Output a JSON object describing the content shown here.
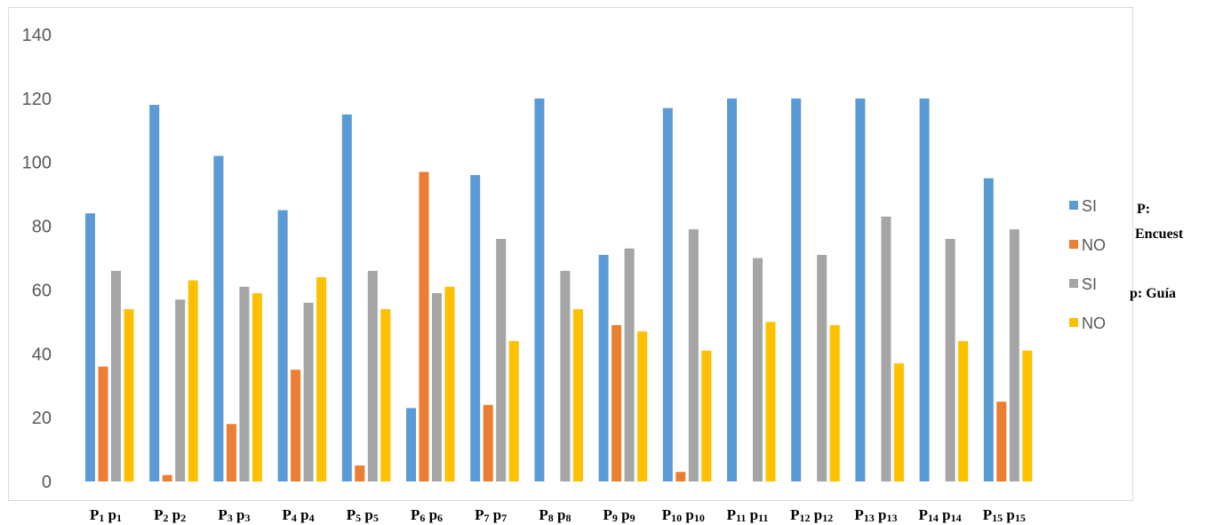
{
  "chart_data": {
    "type": "bar",
    "categories": [
      {
        "main": "P",
        "sub": "1",
        "main2": "p",
        "sub2": "1"
      },
      {
        "main": "P",
        "sub": "2",
        "main2": "p",
        "sub2": "2"
      },
      {
        "main": "P",
        "sub": "3",
        "main2": "p",
        "sub2": "3"
      },
      {
        "main": "P",
        "sub": "4",
        "main2": "p",
        "sub2": "4"
      },
      {
        "main": "P",
        "sub": "5",
        "main2": "p",
        "sub2": "5"
      },
      {
        "main": "P",
        "sub": "6",
        "main2": "p",
        "sub2": "6"
      },
      {
        "main": "P",
        "sub": "7",
        "main2": "p",
        "sub2": "7"
      },
      {
        "main": "P",
        "sub": "8",
        "main2": "p",
        "sub2": "8"
      },
      {
        "main": "P",
        "sub": "9",
        "main2": "p",
        "sub2": "9"
      },
      {
        "main": "P",
        "sub": "10",
        "main2": "p",
        "sub2": "10"
      },
      {
        "main": "P",
        "sub": "11",
        "main2": "p",
        "sub2": "11"
      },
      {
        "main": "P",
        "sub": "12",
        "main2": "p",
        "sub2": "12"
      },
      {
        "main": "P",
        "sub": "13",
        "main2": "p",
        "sub2": "13"
      },
      {
        "main": "P",
        "sub": "14",
        "main2": "p",
        "sub2": "14"
      },
      {
        "main": "P",
        "sub": "15",
        "main2": "p",
        "sub2": "15"
      }
    ],
    "series": [
      {
        "name": "SI",
        "color": "#5b9bd5",
        "values": [
          84,
          118,
          102,
          85,
          115,
          23,
          96,
          120,
          71,
          117,
          120,
          120,
          120,
          120,
          95
        ]
      },
      {
        "name": "NO",
        "color": "#ed7d31",
        "values": [
          36,
          2,
          18,
          35,
          5,
          97,
          24,
          0,
          49,
          3,
          0,
          0,
          0,
          0,
          25
        ]
      },
      {
        "name": "SI",
        "color": "#a5a5a5",
        "values": [
          66,
          57,
          61,
          56,
          66,
          59,
          76,
          66,
          73,
          79,
          70,
          71,
          83,
          76,
          79
        ]
      },
      {
        "name": "NO",
        "color": "#ffc000",
        "values": [
          54,
          63,
          59,
          64,
          54,
          61,
          44,
          54,
          47,
          41,
          50,
          49,
          37,
          44,
          41
        ]
      }
    ],
    "yticks": [
      "0",
      "20",
      "40",
      "60",
      "80",
      "100",
      "120",
      "140"
    ],
    "ylim": [
      0,
      140
    ],
    "grid": false,
    "legend": "right"
  },
  "notes": {
    "line1": "P:",
    "line2": "Encuest",
    "line3": "p: Guía"
  }
}
